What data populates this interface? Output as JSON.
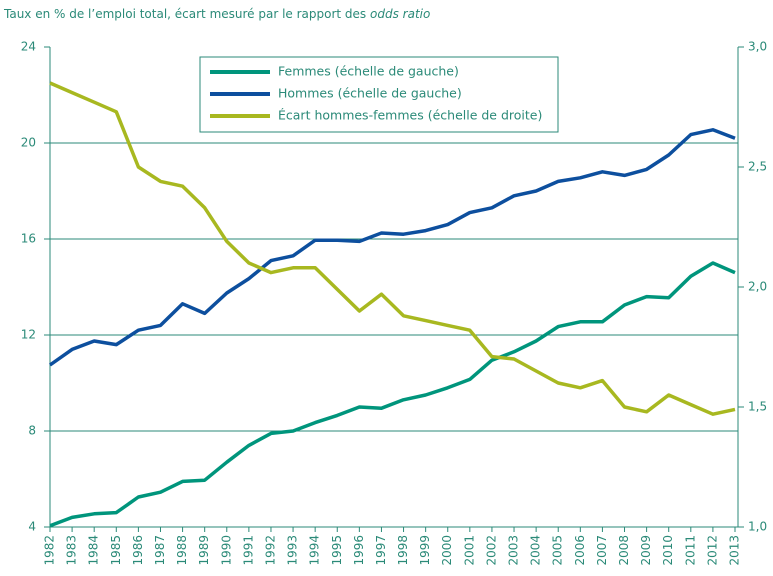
{
  "chart_data": {
    "type": "line",
    "title": "Taux en % de l’emploi total, écart mesuré par le rapport des",
    "title_italic": "odds ratio",
    "categories": [
      "1982",
      "1983",
      "1984",
      "1985",
      "1986",
      "1987",
      "1988",
      "1989",
      "1990",
      "1991",
      "1992",
      "1993",
      "1994",
      "1995",
      "1996",
      "1997",
      "1998",
      "1999",
      "2000",
      "2001",
      "2002",
      "2003",
      "2004",
      "2005",
      "2006",
      "2007",
      "2008",
      "2009",
      "2010",
      "2011",
      "2012",
      "2013"
    ],
    "series": [
      {
        "name": "Femmes (échelle de gauche)",
        "color": "#00957c",
        "values": [
          4.05,
          4.4,
          4.55,
          4.6,
          5.25,
          5.45,
          5.9,
          5.95,
          6.7,
          7.4,
          7.9,
          8.0,
          8.35,
          8.65,
          9.0,
          8.95,
          9.3,
          9.5,
          9.8,
          10.15,
          10.95,
          11.3,
          11.75,
          12.35,
          12.55,
          12.55,
          13.25,
          13.6,
          13.55,
          14.45,
          15.0,
          14.6
        ]
      },
      {
        "name": "Hommes (échelle de gauche)",
        "color": "#0d4f9e",
        "values": [
          10.75,
          11.4,
          11.75,
          11.6,
          12.2,
          12.4,
          13.3,
          12.9,
          13.75,
          14.35,
          15.1,
          15.3,
          15.95,
          15.95,
          15.9,
          16.25,
          16.2,
          16.35,
          16.6,
          17.1,
          17.3,
          17.8,
          18.0,
          18.4,
          18.55,
          18.8,
          18.65,
          18.9,
          19.5,
          20.35,
          20.55,
          20.2
        ]
      },
      {
        "name": "Écart hommes-femmes (échelle de droite)",
        "color": "#a8b820",
        "axis": "y2",
        "values": [
          2.85,
          2.81,
          2.77,
          2.73,
          2.5,
          2.44,
          2.42,
          2.33,
          2.19,
          2.1,
          2.06,
          2.08,
          2.08,
          1.99,
          1.9,
          1.97,
          1.88,
          1.86,
          1.84,
          1.82,
          1.71,
          1.7,
          1.65,
          1.6,
          1.58,
          1.61,
          1.5,
          1.48,
          1.55,
          1.51,
          1.47,
          1.49
        ]
      }
    ],
    "ylim": [
      4,
      24
    ],
    "yticks": [
      4,
      8,
      12,
      16,
      20,
      24
    ],
    "y2lim": [
      1.0,
      3.0
    ],
    "y2ticks": [
      {
        "value": 1.0,
        "label": "1,0"
      },
      {
        "value": 1.5,
        "label": "1,5"
      },
      {
        "value": 2.0,
        "label": "2,0"
      },
      {
        "value": 2.5,
        "label": "2,5"
      },
      {
        "value": 3.0,
        "label": "3,0"
      }
    ],
    "grid": true,
    "axis_color": "#2b8a78"
  }
}
